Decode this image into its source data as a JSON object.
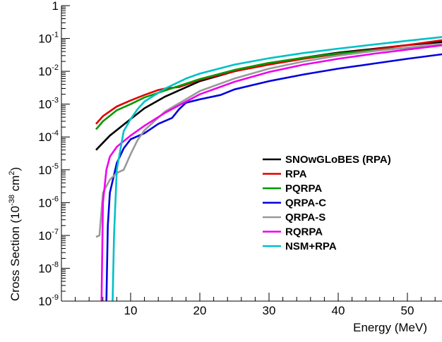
{
  "chart_data": {
    "type": "line",
    "xlabel": "Energy (MeV)",
    "ylabel": {
      "prefix": "Cross Section (10",
      "exp": "-38",
      "mid": " cm",
      "exp2": "2",
      "suffix": ")"
    },
    "xlim": [
      0,
      55
    ],
    "ylim": [
      1e-09,
      1
    ],
    "yscale": "log",
    "grid": false,
    "legend_position": "center-right",
    "x_ticks": [
      10,
      20,
      30,
      40,
      50
    ],
    "y_ticks": [
      {
        "value": 1,
        "base": "1",
        "exp": ""
      },
      {
        "value": 0.1,
        "base": "10",
        "exp": "-1"
      },
      {
        "value": 0.01,
        "base": "10",
        "exp": "-2"
      },
      {
        "value": 0.001,
        "base": "10",
        "exp": "-3"
      },
      {
        "value": 0.0001,
        "base": "10",
        "exp": "-4"
      },
      {
        "value": 1e-05,
        "base": "10",
        "exp": "-5"
      },
      {
        "value": 1e-06,
        "base": "10",
        "exp": "-6"
      },
      {
        "value": 1e-07,
        "base": "10",
        "exp": "-7"
      },
      {
        "value": 1e-08,
        "base": "10",
        "exp": "-8"
      },
      {
        "value": 1e-09,
        "base": "10",
        "exp": "-9"
      }
    ],
    "series": [
      {
        "name": "SNOwGLoBES (RPA)",
        "color": "#000000",
        "points": [
          [
            5,
            4e-05
          ],
          [
            7,
            0.00011
          ],
          [
            10,
            0.00035
          ],
          [
            12,
            0.00075
          ],
          [
            15,
            0.0017
          ],
          [
            20,
            0.005
          ],
          [
            25,
            0.01
          ],
          [
            30,
            0.017
          ],
          [
            35,
            0.026
          ],
          [
            40,
            0.037
          ],
          [
            45,
            0.048
          ],
          [
            50,
            0.063
          ],
          [
            55,
            0.078
          ]
        ]
      },
      {
        "name": "RPA",
        "color": "#e00000",
        "points": [
          [
            5,
            0.00025
          ],
          [
            6,
            0.00043
          ],
          [
            8,
            0.00085
          ],
          [
            10,
            0.0013
          ],
          [
            12,
            0.0019
          ],
          [
            14,
            0.0027
          ],
          [
            15,
            0.003
          ],
          [
            17,
            0.0033
          ],
          [
            20,
            0.0055
          ],
          [
            25,
            0.01
          ],
          [
            30,
            0.016
          ],
          [
            35,
            0.024
          ],
          [
            40,
            0.034
          ],
          [
            45,
            0.046
          ],
          [
            50,
            0.063
          ],
          [
            55,
            0.088
          ]
        ]
      },
      {
        "name": "PQRPA",
        "color": "#009900",
        "points": [
          [
            5,
            0.00017
          ],
          [
            6,
            0.0003
          ],
          [
            8,
            0.00065
          ],
          [
            10,
            0.001
          ],
          [
            12,
            0.0016
          ],
          [
            15,
            0.0026
          ],
          [
            20,
            0.0058
          ],
          [
            25,
            0.011
          ],
          [
            30,
            0.018
          ],
          [
            35,
            0.026
          ],
          [
            40,
            0.035
          ],
          [
            45,
            0.043
          ],
          [
            50,
            0.052
          ],
          [
            55,
            0.062
          ]
        ]
      },
      {
        "name": "QRPA-C",
        "color": "#0000dd",
        "points": [
          [
            6.5,
            1e-09
          ],
          [
            6.7,
            2e-07
          ],
          [
            7,
            2e-06
          ],
          [
            8,
            1.6e-05
          ],
          [
            9,
            4.5e-05
          ],
          [
            10,
            8.5e-05
          ],
          [
            12,
            0.00013
          ],
          [
            14,
            0.00025
          ],
          [
            16,
            0.00038
          ],
          [
            17,
            0.0007
          ],
          [
            18,
            0.0011
          ],
          [
            20,
            0.0014
          ],
          [
            23,
            0.0019
          ],
          [
            25,
            0.0028
          ],
          [
            30,
            0.005
          ],
          [
            35,
            0.008
          ],
          [
            40,
            0.012
          ],
          [
            45,
            0.017
          ],
          [
            50,
            0.024
          ],
          [
            55,
            0.033
          ]
        ]
      },
      {
        "name": "QRPA-S",
        "color": "#999999",
        "points": [
          [
            5,
            9e-08
          ],
          [
            5.5,
            1e-07
          ],
          [
            6,
            2e-06
          ],
          [
            7,
            5e-06
          ],
          [
            8,
            8e-06
          ],
          [
            9,
            1e-05
          ],
          [
            10,
            3e-05
          ],
          [
            11,
            8e-05
          ],
          [
            12,
            0.00016
          ],
          [
            15,
            0.0006
          ],
          [
            20,
            0.0025
          ],
          [
            25,
            0.006
          ],
          [
            30,
            0.012
          ],
          [
            35,
            0.02
          ],
          [
            40,
            0.03
          ],
          [
            45,
            0.041
          ],
          [
            50,
            0.053
          ],
          [
            55,
            0.068
          ]
        ]
      },
      {
        "name": "RQRPA",
        "color": "#ee00ee",
        "points": [
          [
            5.8,
            1e-09
          ],
          [
            6,
            1e-06
          ],
          [
            6.5,
            1e-05
          ],
          [
            7,
            2.5e-05
          ],
          [
            8,
            5e-05
          ],
          [
            10,
            0.00011
          ],
          [
            12,
            0.00022
          ],
          [
            15,
            0.00055
          ],
          [
            20,
            0.002
          ],
          [
            25,
            0.0048
          ],
          [
            30,
            0.0095
          ],
          [
            35,
            0.016
          ],
          [
            40,
            0.024
          ],
          [
            45,
            0.034
          ],
          [
            50,
            0.046
          ],
          [
            55,
            0.062
          ]
        ]
      },
      {
        "name": "NSM+RPA",
        "color": "#00c0c8",
        "points": [
          [
            7.4,
            1e-09
          ],
          [
            7.6,
            1e-07
          ],
          [
            8,
            1e-05
          ],
          [
            9,
            0.00015
          ],
          [
            10,
            0.00035
          ],
          [
            11,
            0.0007
          ],
          [
            12,
            0.0012
          ],
          [
            15,
            0.003
          ],
          [
            18,
            0.006
          ],
          [
            20,
            0.0085
          ],
          [
            25,
            0.016
          ],
          [
            30,
            0.025
          ],
          [
            35,
            0.036
          ],
          [
            40,
            0.049
          ],
          [
            45,
            0.065
          ],
          [
            50,
            0.085
          ],
          [
            55,
            0.11
          ]
        ]
      }
    ]
  }
}
